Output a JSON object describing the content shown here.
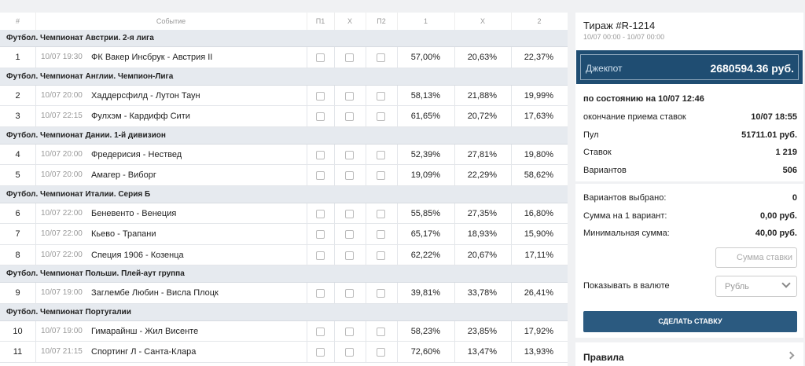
{
  "table": {
    "columns": [
      "#",
      "Событие",
      "П1",
      "X",
      "П2",
      "1",
      "X",
      "2"
    ],
    "groups": [
      {
        "title": "Футбол. Чемпионат Австрии. 2-я лига",
        "matches": [
          [
            "1",
            "10/07 19:30",
            "ФК Вакер Инсбрук - Австрия II",
            "57,00%",
            "20,63%",
            "22,37%"
          ]
        ]
      },
      {
        "title": "Футбол. Чемпионат Англии. Чемпион-Лига",
        "matches": [
          [
            "2",
            "10/07 20:00",
            "Хаддерсфилд - Лутон Таун",
            "58,13%",
            "21,88%",
            "19,99%"
          ],
          [
            "3",
            "10/07 22:15",
            "Фулхэм - Кардифф Сити",
            "61,65%",
            "20,72%",
            "17,63%"
          ]
        ]
      },
      {
        "title": "Футбол. Чемпионат Дании. 1-й дивизион",
        "matches": [
          [
            "4",
            "10/07 20:00",
            "Фредерисия - Нествед",
            "52,39%",
            "27,81%",
            "19,80%"
          ],
          [
            "5",
            "10/07 20:00",
            "Амагер - Виборг",
            "19,09%",
            "22,29%",
            "58,62%"
          ]
        ]
      },
      {
        "title": "Футбол. Чемпионат Италии. Серия Б",
        "matches": [
          [
            "6",
            "10/07 22:00",
            "Беневенто - Венеция",
            "55,85%",
            "27,35%",
            "16,80%"
          ],
          [
            "7",
            "10/07 22:00",
            "Кьево - Трапани",
            "65,17%",
            "18,93%",
            "15,90%"
          ],
          [
            "8",
            "10/07 22:00",
            "Специя 1906 - Козенца",
            "62,22%",
            "20,67%",
            "17,11%"
          ]
        ]
      },
      {
        "title": "Футбол. Чемпионат Польши. Плей-аут группа",
        "matches": [
          [
            "9",
            "10/07 19:00",
            "Заглембе Любин - Висла Плоцк",
            "39,81%",
            "33,78%",
            "26,41%"
          ]
        ]
      },
      {
        "title": "Футбол. Чемпионат Португалии",
        "matches": [
          [
            "10",
            "10/07 19:00",
            "Гимарайнш - Жил Висенте",
            "58,23%",
            "23,85%",
            "17,92%"
          ],
          [
            "11",
            "10/07 21:15",
            "Спортинг Л - Санта-Клара",
            "72,60%",
            "13,47%",
            "13,93%"
          ]
        ]
      }
    ]
  },
  "panel": {
    "title": "Тираж #R-1214",
    "period": "10/07 00:00 - 10/07 00:00",
    "jackpot_label": "Джекпот",
    "jackpot_value": "2680594.36 руб.",
    "status": "по состоянию на 10/07 12:46",
    "info": [
      [
        "окончание приема ставок",
        "10/07 18:55"
      ],
      [
        "Пул",
        "51711.01 руб."
      ],
      [
        "Ставок",
        "1 219"
      ],
      [
        "Вариантов",
        "506"
      ]
    ],
    "summary": [
      [
        "Вариантов выбрано:",
        "0"
      ],
      [
        "Сумма на 1 вариант:",
        "0,00 руб."
      ],
      [
        "Минимальная сумма:",
        "40,00 руб."
      ]
    ],
    "amount_placeholder": "Сумма ставки",
    "currency_label": "Показывать в валюте",
    "currency": "Рубль",
    "button": "СДЕЛАТЬ СТАВКУ",
    "rules": "Правила"
  }
}
